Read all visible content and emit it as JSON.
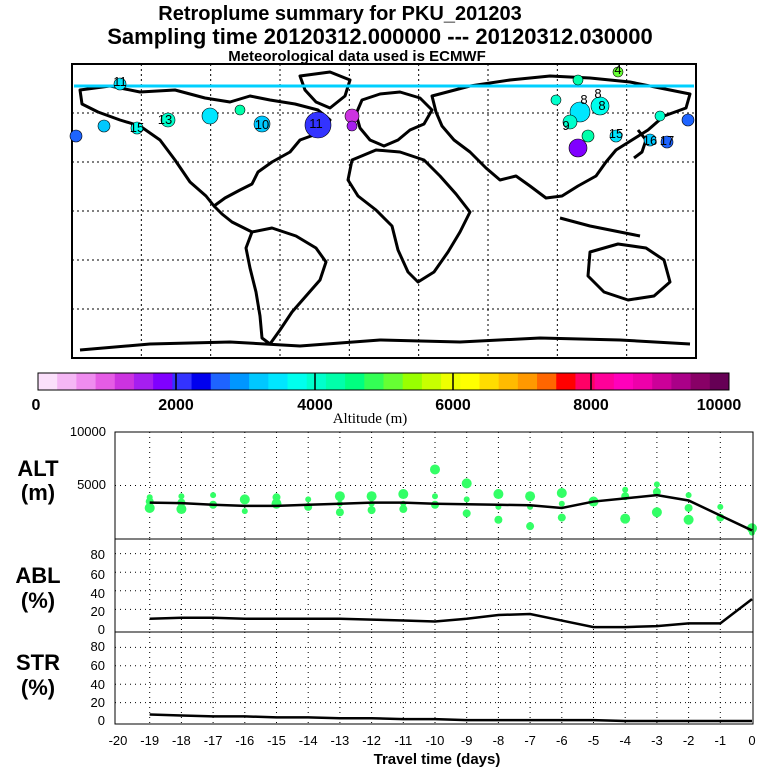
{
  "titles": {
    "line1": "Retroplume summary for PKU_201203",
    "line2": "Sampling time   20120312.000000 --- 20120312.030000",
    "line3": "Meteorological data used is ECMWF"
  },
  "colors": {
    "scatter": "#33ff66",
    "line": "#000000",
    "grid": "#000000"
  },
  "colorbar": {
    "colors": [
      "#fbe0fb",
      "#f5b7f5",
      "#ef8cef",
      "#e55ce5",
      "#cc33e0",
      "#a61ef0",
      "#8000ff",
      "#3333ff",
      "#0000ee",
      "#1e64ff",
      "#0096ff",
      "#00c8ff",
      "#00e6ff",
      "#00ffee",
      "#00ffcc",
      "#00ffaa",
      "#00ff80",
      "#33ff55",
      "#66ff33",
      "#99ff00",
      "#c8ff00",
      "#eeff00",
      "#ffff00",
      "#ffdd00",
      "#ffbb00",
      "#ff9900",
      "#ff6600",
      "#ff0000",
      "#ff0066",
      "#ff0099",
      "#ff00bb",
      "#ee00aa",
      "#cc0099",
      "#aa0088",
      "#880066",
      "#660055"
    ],
    "tick_labels": [
      "0",
      "2000",
      "4000",
      "6000",
      "8000",
      "10000"
    ],
    "title": "Altitude (m)"
  },
  "map": {
    "labels": [
      "4",
      "8",
      "15",
      "10",
      "13",
      "16",
      "17",
      "11",
      "8",
      "8",
      "15",
      "9",
      "11"
    ]
  },
  "chart_data": [
    {
      "type": "scatter+line",
      "panel": "ALT",
      "ylabel_line1": "ALT",
      "ylabel_line2": "(m)",
      "ylim": [
        0,
        10000
      ],
      "y_tick_labels": [
        "10000",
        "5000"
      ],
      "line_x": [
        -19,
        -18,
        -17,
        -16,
        -15,
        -14,
        -13,
        -12,
        -11,
        -10,
        -9,
        -8,
        -7,
        -6,
        -5,
        -4,
        -3,
        -2,
        -1,
        0
      ],
      "line_y": [
        3400,
        3350,
        3200,
        3100,
        3100,
        3200,
        3300,
        3400,
        3400,
        3300,
        3250,
        3200,
        3150,
        2900,
        3500,
        3800,
        4100,
        3600,
        2200,
        800
      ],
      "points": [
        {
          "x": -19,
          "y": 3900
        },
        {
          "x": -19,
          "y": 3500
        },
        {
          "x": -19,
          "y": 2900
        },
        {
          "x": -18,
          "y": 4000
        },
        {
          "x": -18,
          "y": 3400
        },
        {
          "x": -18,
          "y": 2800
        },
        {
          "x": -17,
          "y": 4100
        },
        {
          "x": -17,
          "y": 3200
        },
        {
          "x": -16,
          "y": 3700
        },
        {
          "x": -16,
          "y": 2600
        },
        {
          "x": -15,
          "y": 3900
        },
        {
          "x": -15,
          "y": 3300
        },
        {
          "x": -14,
          "y": 3700
        },
        {
          "x": -14,
          "y": 3000
        },
        {
          "x": -13,
          "y": 4000
        },
        {
          "x": -13,
          "y": 3300
        },
        {
          "x": -13,
          "y": 2500
        },
        {
          "x": -12,
          "y": 4000
        },
        {
          "x": -12,
          "y": 3300
        },
        {
          "x": -12,
          "y": 2700
        },
        {
          "x": -11,
          "y": 4200
        },
        {
          "x": -11,
          "y": 3300
        },
        {
          "x": -11,
          "y": 2800
        },
        {
          "x": -10,
          "y": 6500
        },
        {
          "x": -10,
          "y": 4000
        },
        {
          "x": -10,
          "y": 3200
        },
        {
          "x": -9,
          "y": 5200
        },
        {
          "x": -9,
          "y": 3700
        },
        {
          "x": -9,
          "y": 2400
        },
        {
          "x": -8,
          "y": 4200
        },
        {
          "x": -8,
          "y": 3000
        },
        {
          "x": -8,
          "y": 1800
        },
        {
          "x": -7,
          "y": 4000
        },
        {
          "x": -7,
          "y": 3000
        },
        {
          "x": -7,
          "y": 1200
        },
        {
          "x": -6,
          "y": 4300
        },
        {
          "x": -6,
          "y": 3300
        },
        {
          "x": -6,
          "y": 2000
        },
        {
          "x": -5,
          "y": 3500
        },
        {
          "x": -4,
          "y": 4600
        },
        {
          "x": -4,
          "y": 4000
        },
        {
          "x": -4,
          "y": 1900
        },
        {
          "x": -3,
          "y": 5100
        },
        {
          "x": -3,
          "y": 4400
        },
        {
          "x": -3,
          "y": 2500
        },
        {
          "x": -2,
          "y": 4100
        },
        {
          "x": -2,
          "y": 2900
        },
        {
          "x": -2,
          "y": 1800
        },
        {
          "x": -1,
          "y": 3000
        },
        {
          "x": -1,
          "y": 2000
        },
        {
          "x": 0,
          "y": 1000
        },
        {
          "x": 0,
          "y": 600
        }
      ]
    },
    {
      "type": "line",
      "panel": "ABL",
      "ylabel_line1": "ABL",
      "ylabel_line2": "(%)",
      "ylim": [
        0,
        100
      ],
      "y_tick_labels": [
        "80",
        "60",
        "40",
        "20",
        "0"
      ],
      "x": [
        -19,
        -18,
        -17,
        -16,
        -15,
        -14,
        -13,
        -12,
        -11,
        -10,
        -9,
        -8,
        -7,
        -6,
        -5,
        -4,
        -3,
        -2,
        -1,
        0
      ],
      "values": [
        10,
        11,
        11,
        10,
        10,
        10,
        10,
        9,
        8,
        7,
        10,
        14,
        15,
        8,
        1,
        1,
        2,
        5,
        5,
        31
      ]
    },
    {
      "type": "line",
      "panel": "STR",
      "ylabel_line1": "STR",
      "ylabel_line2": "(%)",
      "ylim": [
        0,
        100
      ],
      "y_tick_labels": [
        "80",
        "60",
        "40",
        "20",
        "0"
      ],
      "x": [
        -19,
        -18,
        -17,
        -16,
        -15,
        -14,
        -13,
        -12,
        -11,
        -10,
        -9,
        -8,
        -7,
        -6,
        -5,
        -4,
        -3,
        -2,
        -1,
        0
      ],
      "values": [
        7,
        6,
        5,
        5,
        4,
        4,
        3,
        3,
        2,
        2,
        1,
        1,
        1,
        1,
        1,
        0,
        0,
        0,
        0,
        0
      ],
      "xlabel": "Travel time (days)",
      "x_tick_labels": [
        "-20",
        "-19",
        "-18",
        "-17",
        "-16",
        "-15",
        "-14",
        "-13",
        "-12",
        "-11",
        "-10",
        "-9",
        "-8",
        "-7",
        "-6",
        "-5",
        "-4",
        "-3",
        "-2",
        "-1",
        "0"
      ]
    }
  ]
}
